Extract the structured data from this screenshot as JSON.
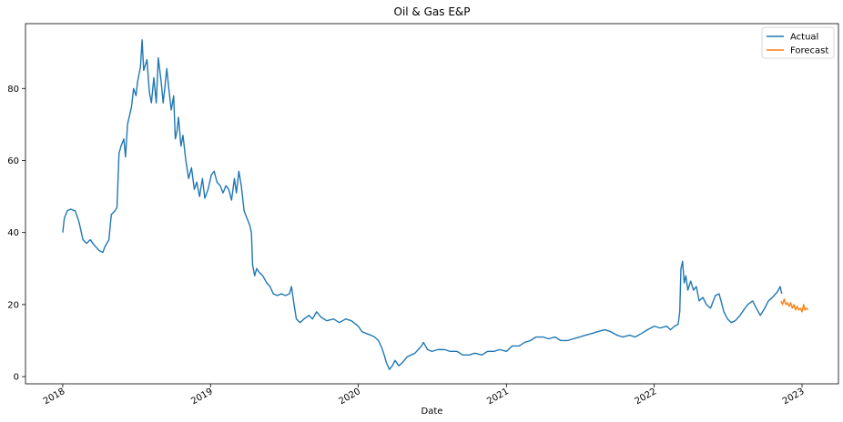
{
  "chart_data": {
    "type": "line",
    "title": "Oil & Gas E&P",
    "xlabel": "Date",
    "ylabel": "",
    "xlim": [
      "2017-10-01",
      "2023-04-01"
    ],
    "ylim": [
      -2,
      98
    ],
    "x_ticks": [
      "2018-01-01",
      "2019-01-01",
      "2020-01-01",
      "2021-01-01",
      "2022-01-01",
      "2023-01-01"
    ],
    "x_tick_labels": [
      "2018",
      "2019",
      "2020",
      "2021",
      "2022",
      "2023"
    ],
    "y_ticks": [
      0,
      20,
      40,
      60,
      80
    ],
    "y_tick_labels": [
      "0",
      "20",
      "40",
      "60",
      "80"
    ],
    "grid": false,
    "legend_position": "top-right",
    "series": [
      {
        "name": "Actual",
        "color": "#1f77b4",
        "points": [
          [
            "2018-01-01",
            40
          ],
          [
            "2018-01-05",
            44
          ],
          [
            "2018-01-12",
            46
          ],
          [
            "2018-01-20",
            46.5
          ],
          [
            "2018-02-01",
            46
          ],
          [
            "2018-02-10",
            43
          ],
          [
            "2018-02-20",
            38
          ],
          [
            "2018-03-01",
            37
          ],
          [
            "2018-03-10",
            38
          ],
          [
            "2018-03-20",
            36.5
          ],
          [
            "2018-04-01",
            35
          ],
          [
            "2018-04-10",
            34.5
          ],
          [
            "2018-04-15",
            36
          ],
          [
            "2018-04-25",
            38
          ],
          [
            "2018-05-01",
            45
          ],
          [
            "2018-05-10",
            46
          ],
          [
            "2018-05-15",
            47
          ],
          [
            "2018-05-20",
            62
          ],
          [
            "2018-05-25",
            64
          ],
          [
            "2018-06-01",
            66
          ],
          [
            "2018-06-05",
            61
          ],
          [
            "2018-06-10",
            70
          ],
          [
            "2018-06-20",
            75
          ],
          [
            "2018-06-25",
            80
          ],
          [
            "2018-07-01",
            78
          ],
          [
            "2018-07-05",
            82
          ],
          [
            "2018-07-12",
            86
          ],
          [
            "2018-07-16",
            93.5
          ],
          [
            "2018-07-20",
            85
          ],
          [
            "2018-07-28",
            88
          ],
          [
            "2018-08-03",
            79
          ],
          [
            "2018-08-08",
            76
          ],
          [
            "2018-08-14",
            83
          ],
          [
            "2018-08-20",
            76
          ],
          [
            "2018-08-25",
            88.5
          ],
          [
            "2018-09-01",
            82
          ],
          [
            "2018-09-06",
            76
          ],
          [
            "2018-09-10",
            80
          ],
          [
            "2018-09-15",
            85.5
          ],
          [
            "2018-09-20",
            80
          ],
          [
            "2018-09-26",
            74
          ],
          [
            "2018-10-02",
            78
          ],
          [
            "2018-10-06",
            66
          ],
          [
            "2018-10-10",
            68
          ],
          [
            "2018-10-14",
            72
          ],
          [
            "2018-10-20",
            64
          ],
          [
            "2018-10-25",
            67
          ],
          [
            "2018-11-01",
            60
          ],
          [
            "2018-11-08",
            55
          ],
          [
            "2018-11-15",
            58
          ],
          [
            "2018-11-22",
            52
          ],
          [
            "2018-11-28",
            54
          ],
          [
            "2018-12-05",
            50
          ],
          [
            "2018-12-12",
            55
          ],
          [
            "2018-12-18",
            49.5
          ],
          [
            "2018-12-26",
            52
          ],
          [
            "2019-01-03",
            56
          ],
          [
            "2019-01-10",
            57
          ],
          [
            "2019-01-17",
            54
          ],
          [
            "2019-01-25",
            53
          ],
          [
            "2019-02-01",
            51
          ],
          [
            "2019-02-08",
            53
          ],
          [
            "2019-02-15",
            52
          ],
          [
            "2019-02-22",
            49
          ],
          [
            "2019-03-01",
            55
          ],
          [
            "2019-03-06",
            51
          ],
          [
            "2019-03-12",
            57
          ],
          [
            "2019-03-18",
            53
          ],
          [
            "2019-03-25",
            46
          ],
          [
            "2019-04-01",
            44
          ],
          [
            "2019-04-08",
            42
          ],
          [
            "2019-04-12",
            40
          ],
          [
            "2019-04-15",
            31
          ],
          [
            "2019-04-20",
            28
          ],
          [
            "2019-04-25",
            30
          ],
          [
            "2019-05-01",
            29
          ],
          [
            "2019-05-10",
            28
          ],
          [
            "2019-05-20",
            26
          ],
          [
            "2019-05-28",
            25
          ],
          [
            "2019-06-05",
            23
          ],
          [
            "2019-06-15",
            22.5
          ],
          [
            "2019-06-25",
            23
          ],
          [
            "2019-07-05",
            22.5
          ],
          [
            "2019-07-15",
            23
          ],
          [
            "2019-07-20",
            25
          ],
          [
            "2019-07-25",
            21
          ],
          [
            "2019-08-01",
            16
          ],
          [
            "2019-08-10",
            15
          ],
          [
            "2019-08-20",
            16
          ],
          [
            "2019-09-01",
            17
          ],
          [
            "2019-09-10",
            16
          ],
          [
            "2019-09-20",
            18
          ],
          [
            "2019-10-01",
            16.5
          ],
          [
            "2019-10-15",
            15.5
          ],
          [
            "2019-11-01",
            16
          ],
          [
            "2019-11-15",
            15
          ],
          [
            "2019-12-01",
            16
          ],
          [
            "2019-12-15",
            15.5
          ],
          [
            "2020-01-01",
            14
          ],
          [
            "2020-01-10",
            12.5
          ],
          [
            "2020-01-20",
            12
          ],
          [
            "2020-02-01",
            11.5
          ],
          [
            "2020-02-10",
            11
          ],
          [
            "2020-02-20",
            10
          ],
          [
            "2020-02-28",
            8
          ],
          [
            "2020-03-05",
            6
          ],
          [
            "2020-03-10",
            4
          ],
          [
            "2020-03-18",
            2
          ],
          [
            "2020-03-25",
            3
          ],
          [
            "2020-04-01",
            4.5
          ],
          [
            "2020-04-10",
            3
          ],
          [
            "2020-04-20",
            4
          ],
          [
            "2020-05-01",
            5.5
          ],
          [
            "2020-05-10",
            6
          ],
          [
            "2020-05-20",
            6.5
          ],
          [
            "2020-06-05",
            8.5
          ],
          [
            "2020-06-10",
            9.5
          ],
          [
            "2020-06-20",
            7.5
          ],
          [
            "2020-07-01",
            7
          ],
          [
            "2020-07-15",
            7.5
          ],
          [
            "2020-08-01",
            7.5
          ],
          [
            "2020-08-15",
            7
          ],
          [
            "2020-09-01",
            7
          ],
          [
            "2020-09-15",
            6
          ],
          [
            "2020-10-01",
            6
          ],
          [
            "2020-10-15",
            6.5
          ],
          [
            "2020-11-01",
            6
          ],
          [
            "2020-11-15",
            7
          ],
          [
            "2020-12-01",
            7
          ],
          [
            "2020-12-15",
            7.5
          ],
          [
            "2021-01-01",
            7
          ],
          [
            "2021-01-15",
            8.5
          ],
          [
            "2021-02-01",
            8.5
          ],
          [
            "2021-02-15",
            9.5
          ],
          [
            "2021-03-01",
            10
          ],
          [
            "2021-03-15",
            11
          ],
          [
            "2021-04-01",
            11
          ],
          [
            "2021-04-15",
            10.5
          ],
          [
            "2021-05-01",
            11
          ],
          [
            "2021-05-15",
            10
          ],
          [
            "2021-06-01",
            10
          ],
          [
            "2021-06-15",
            10.5
          ],
          [
            "2021-07-01",
            11
          ],
          [
            "2021-07-15",
            11.5
          ],
          [
            "2021-08-01",
            12
          ],
          [
            "2021-08-15",
            12.5
          ],
          [
            "2021-09-01",
            13
          ],
          [
            "2021-09-15",
            12.5
          ],
          [
            "2021-10-01",
            11.5
          ],
          [
            "2021-10-15",
            11
          ],
          [
            "2021-11-01",
            11.5
          ],
          [
            "2021-11-15",
            11
          ],
          [
            "2021-12-01",
            12
          ],
          [
            "2021-12-15",
            13
          ],
          [
            "2022-01-01",
            14
          ],
          [
            "2022-01-15",
            13.5
          ],
          [
            "2022-02-01",
            14
          ],
          [
            "2022-02-10",
            13
          ],
          [
            "2022-02-20",
            14
          ],
          [
            "2022-03-01",
            14.5
          ],
          [
            "2022-03-05",
            18
          ],
          [
            "2022-03-08",
            30
          ],
          [
            "2022-03-12",
            32
          ],
          [
            "2022-03-16",
            26
          ],
          [
            "2022-03-20",
            28
          ],
          [
            "2022-03-25",
            24
          ],
          [
            "2022-04-01",
            26.5
          ],
          [
            "2022-04-08",
            24
          ],
          [
            "2022-04-15",
            25
          ],
          [
            "2022-04-22",
            21
          ],
          [
            "2022-05-01",
            22
          ],
          [
            "2022-05-10",
            20
          ],
          [
            "2022-05-20",
            19
          ],
          [
            "2022-06-01",
            22.5
          ],
          [
            "2022-06-10",
            23
          ],
          [
            "2022-06-15",
            21
          ],
          [
            "2022-06-22",
            18
          ],
          [
            "2022-07-01",
            16
          ],
          [
            "2022-07-10",
            15
          ],
          [
            "2022-07-20",
            15.5
          ],
          [
            "2022-08-01",
            17
          ],
          [
            "2022-08-10",
            18.5
          ],
          [
            "2022-08-20",
            20
          ],
          [
            "2022-09-01",
            21
          ],
          [
            "2022-09-10",
            19
          ],
          [
            "2022-09-20",
            17
          ],
          [
            "2022-10-01",
            19
          ],
          [
            "2022-10-10",
            21
          ],
          [
            "2022-10-20",
            22
          ],
          [
            "2022-11-01",
            23.5
          ],
          [
            "2022-11-08",
            25
          ],
          [
            "2022-11-12",
            23
          ]
        ]
      },
      {
        "name": "Forecast",
        "color": "#ff7f0e",
        "points": [
          [
            "2022-11-10",
            21
          ],
          [
            "2022-11-14",
            20
          ],
          [
            "2022-11-18",
            21.5
          ],
          [
            "2022-11-22",
            20
          ],
          [
            "2022-11-26",
            20.5
          ],
          [
            "2022-11-30",
            19.5
          ],
          [
            "2022-12-04",
            20.5
          ],
          [
            "2022-12-08",
            19
          ],
          [
            "2022-12-12",
            20
          ],
          [
            "2022-12-16",
            18.5
          ],
          [
            "2022-12-20",
            19.5
          ],
          [
            "2022-12-24",
            18.5
          ],
          [
            "2022-12-28",
            19
          ],
          [
            "2023-01-01",
            18
          ],
          [
            "2023-01-05",
            20
          ],
          [
            "2023-01-08",
            18.5
          ],
          [
            "2023-01-12",
            19
          ],
          [
            "2023-01-16",
            18.5
          ]
        ]
      }
    ]
  }
}
